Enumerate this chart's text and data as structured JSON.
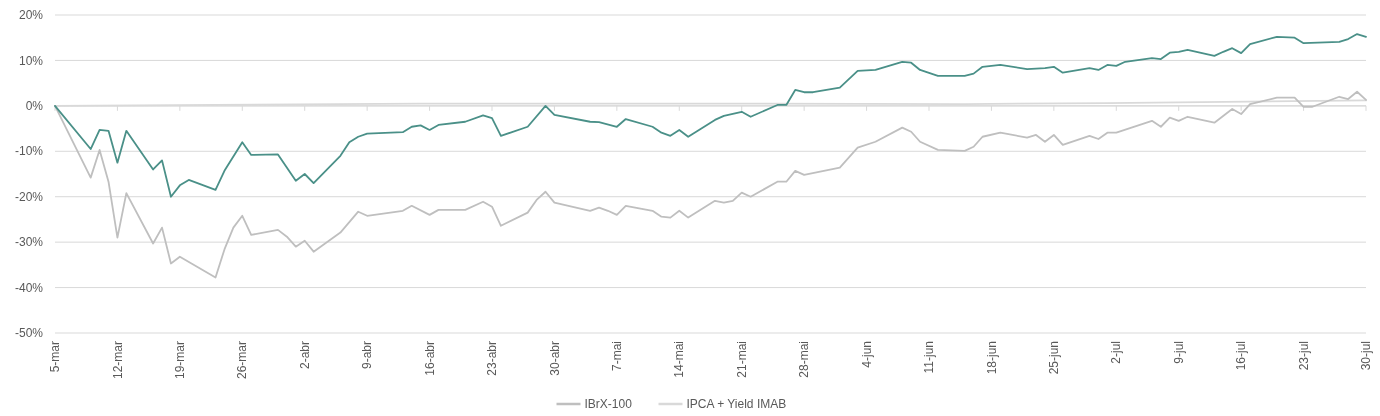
{
  "chart_data": {
    "type": "line",
    "xlim": [
      "--03-05",
      "--07-30"
    ],
    "xticks": [
      {
        "value": "--03-05",
        "label": "5-mar"
      },
      {
        "value": "--03-12",
        "label": "12-mar"
      },
      {
        "value": "--03-19",
        "label": "19-mar"
      },
      {
        "value": "--03-26",
        "label": "26-mar"
      },
      {
        "value": "--04-02",
        "label": "2-abr"
      },
      {
        "value": "--04-09",
        "label": "9-abr"
      },
      {
        "value": "--04-16",
        "label": "16-abr"
      },
      {
        "value": "--04-23",
        "label": "23-abr"
      },
      {
        "value": "--04-30",
        "label": "30-abr"
      },
      {
        "value": "--05-07",
        "label": "7-mai"
      },
      {
        "value": "--05-14",
        "label": "14-mai"
      },
      {
        "value": "--05-21",
        "label": "21-mai"
      },
      {
        "value": "--05-28",
        "label": "28-mai"
      },
      {
        "value": "--06-04",
        "label": "4-jun"
      },
      {
        "value": "--06-11",
        "label": "11-jun"
      },
      {
        "value": "--06-18",
        "label": "18-jun"
      },
      {
        "value": "--06-25",
        "label": "25-jun"
      },
      {
        "value": "--07-02",
        "label": "2-jul"
      },
      {
        "value": "--07-09",
        "label": "9-jul"
      },
      {
        "value": "--07-16",
        "label": "16-jul"
      },
      {
        "value": "--07-23",
        "label": "23-jul"
      },
      {
        "value": "--07-30",
        "label": "30-jul"
      }
    ],
    "ylim": [
      -50,
      20
    ],
    "yticks": [
      {
        "value": -50,
        "label": "-50%"
      },
      {
        "value": -40,
        "label": "-40%"
      },
      {
        "value": -30,
        "label": "-30%"
      },
      {
        "value": -20,
        "label": "-20%"
      },
      {
        "value": -10,
        "label": "-10%"
      },
      {
        "value": 0,
        "label": "0%"
      },
      {
        "value": 10,
        "label": "10%"
      },
      {
        "value": 20,
        "label": "20%"
      }
    ],
    "grid": "y",
    "legend": "bottom",
    "line_style": "solid",
    "marker": "none",
    "series": [
      {
        "color": "#4a9088",
        "x": [
          "--03-05",
          "--03-09",
          "--03-10",
          "--03-11",
          "--03-12",
          "--03-13",
          "--03-16",
          "--03-17",
          "--03-18",
          "--03-19",
          "--03-20",
          "--03-23",
          "--03-24",
          "--03-26",
          "--03-27",
          "--03-30",
          "--04-01",
          "--04-02",
          "--04-03",
          "--04-06",
          "--04-07",
          "--04-08",
          "--04-09",
          "--04-13",
          "--04-14",
          "--04-15",
          "--04-16",
          "--04-17",
          "--04-20",
          "--04-22",
          "--04-23",
          "--04-24",
          "--04-27",
          "--04-29",
          "--04-30",
          "--05-04",
          "--05-05",
          "--05-07",
          "--05-08",
          "--05-11",
          "--05-12",
          "--05-13",
          "--05-14",
          "--05-15",
          "--05-18",
          "--05-19",
          "--05-21",
          "--05-22",
          "--05-25",
          "--05-26",
          "--05-27",
          "--05-28",
          "--05-29",
          "--06-01",
          "--06-03",
          "--06-05",
          "--06-08",
          "--06-09",
          "--06-10",
          "--06-12",
          "--06-15",
          "--06-16",
          "--06-17",
          "--06-19",
          "--06-22",
          "--06-24",
          "--06-25",
          "--06-26",
          "--06-29",
          "--06-30",
          "--07-01",
          "--07-02",
          "--07-03",
          "--07-06",
          "--07-07",
          "--07-08",
          "--07-09",
          "--07-10",
          "--07-13",
          "--07-14",
          "--07-15",
          "--07-16",
          "--07-17",
          "--07-20",
          "--07-22",
          "--07-23",
          "--07-27",
          "--07-28",
          "--07-29",
          "--07-30"
        ],
        "values": [
          0,
          -9.5,
          -5.3,
          -5.5,
          -12.5,
          -5.5,
          -14,
          -12,
          -20,
          -17.5,
          -16.3,
          -18.5,
          -14.3,
          -8,
          -10.8,
          -10.7,
          -16.5,
          -15,
          -17,
          -11,
          -8,
          -6.8,
          -6.1,
          -5.8,
          -4.6,
          -4.3,
          -5.3,
          -4.2,
          -3.5,
          -2.1,
          -2.7,
          -6.6,
          -4.6,
          0,
          -2,
          -3.5,
          -3.6,
          -4.6,
          -2.9,
          -4.6,
          -5.9,
          -6.6,
          -5.3,
          -6.8,
          -3.1,
          -2.2,
          -1.3,
          -2.4,
          0.2,
          0.2,
          3.5,
          3,
          3,
          4,
          7.7,
          7.9,
          9.7,
          9.5,
          7.9,
          6.6,
          6.6,
          7.1,
          8.6,
          9,
          8.1,
          8.3,
          8.6,
          7.3,
          8.3,
          7.9,
          9,
          8.8,
          9.7,
          10.5,
          10.3,
          11.7,
          11.9,
          12.3,
          11,
          11.9,
          12.7,
          11.6,
          13.6,
          15.2,
          15,
          13.8,
          14.1,
          14.7,
          15.8,
          15.2
        ]
      },
      {
        "name": "IBrX-100",
        "color": "#bfbfbf",
        "x": [
          "--03-05",
          "--03-09",
          "--03-10",
          "--03-11",
          "--03-12",
          "--03-13",
          "--03-16",
          "--03-17",
          "--03-18",
          "--03-19",
          "--03-23",
          "--03-24",
          "--03-25",
          "--03-26",
          "--03-27",
          "--03-30",
          "--03-31",
          "--04-01",
          "--04-02",
          "--04-03",
          "--04-06",
          "--04-08",
          "--04-09",
          "--04-13",
          "--04-14",
          "--04-16",
          "--04-17",
          "--04-20",
          "--04-22",
          "--04-23",
          "--04-24",
          "--04-27",
          "--04-28",
          "--04-29",
          "--04-30",
          "--05-04",
          "--05-05",
          "--05-06",
          "--05-07",
          "--05-08",
          "--05-11",
          "--05-12",
          "--05-13",
          "--05-14",
          "--05-15",
          "--05-18",
          "--05-19",
          "--05-20",
          "--05-21",
          "--05-22",
          "--05-25",
          "--05-26",
          "--05-27",
          "--05-28",
          "--06-01",
          "--06-03",
          "--06-05",
          "--06-08",
          "--06-09",
          "--06-10",
          "--06-12",
          "--06-15",
          "--06-16",
          "--06-17",
          "--06-19",
          "--06-22",
          "--06-23",
          "--06-24",
          "--06-25",
          "--06-26",
          "--06-29",
          "--06-30",
          "--07-01",
          "--07-02",
          "--07-06",
          "--07-07",
          "--07-08",
          "--07-09",
          "--07-10",
          "--07-13",
          "--07-15",
          "--07-16",
          "--07-17",
          "--07-20",
          "--07-22",
          "--07-23",
          "--07-24",
          "--07-27",
          "--07-28",
          "--07-29",
          "--07-30"
        ],
        "values": [
          0,
          -15.8,
          -9.7,
          -16.7,
          -29,
          -19.2,
          -30.3,
          -26.8,
          -34.7,
          -33.2,
          -37.8,
          -31.6,
          -26.8,
          -24.2,
          -28.4,
          -27.3,
          -28.8,
          -31,
          -29.7,
          -32.1,
          -27.9,
          -23.3,
          -24.2,
          -23.1,
          -22,
          -24,
          -22.9,
          -22.9,
          -21.1,
          -22.2,
          -26.4,
          -23.5,
          -20.7,
          -18.9,
          -21.3,
          -23.1,
          -22.4,
          -23.1,
          -24,
          -22,
          -23.1,
          -24.4,
          -24.6,
          -23.1,
          -24.6,
          -20.9,
          -21.3,
          -20.9,
          -19.1,
          -20,
          -16.7,
          -16.7,
          -14.3,
          -15.2,
          -13.6,
          -9.2,
          -7.9,
          -4.8,
          -5.7,
          -7.9,
          -9.7,
          -9.9,
          -9,
          -6.8,
          -5.9,
          -7,
          -6.4,
          -7.9,
          -6.4,
          -8.6,
          -6.6,
          -7.3,
          -5.9,
          -5.9,
          -3.3,
          -4.6,
          -2.6,
          -3.3,
          -2.4,
          -3.7,
          -0.7,
          -1.8,
          0.4,
          1.8,
          1.8,
          -0.2,
          -0.2,
          2,
          1.5,
          3.1,
          1.3
        ]
      },
      {
        "name": "IPCA + Yield IMAB",
        "color": "#d9d9d9",
        "x": [
          "--03-05",
          "--04-15",
          "--05-15",
          "--06-15",
          "--07-01",
          "--07-30"
        ],
        "values": [
          0,
          0.5,
          0.5,
          0.4,
          0.6,
          1.2
        ]
      }
    ]
  }
}
